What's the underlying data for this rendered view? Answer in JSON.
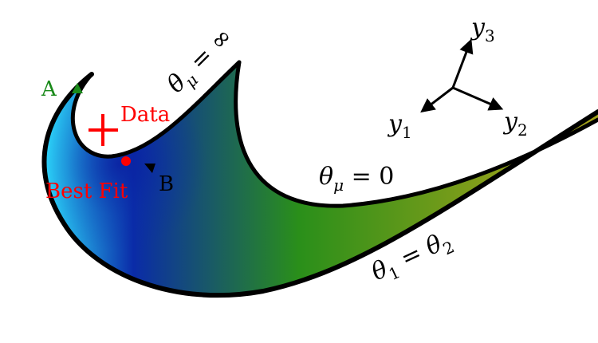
{
  "labels": {
    "point_a": "A",
    "point_b": "B",
    "data": "Data",
    "best_fit": "Best Fit",
    "theta_mu_inf": {
      "theta": "θ",
      "sub": "μ",
      "rel": " = ∞"
    },
    "theta_mu_zero": {
      "theta": "θ",
      "sub": "μ",
      "rel": " = 0"
    },
    "theta_eq": {
      "t1": "θ",
      "s1": "1",
      "rel": " = θ",
      "s2": "2"
    }
  },
  "axes": {
    "y1": {
      "main": "y",
      "sub": "1"
    },
    "y2": {
      "main": "y",
      "sub": "2"
    },
    "y3": {
      "main": "y",
      "sub": "3"
    }
  },
  "colors": {
    "data": "#ff0000",
    "best_fit": "#ff0000",
    "point_a": "#1a8a1a",
    "point_b": "#000000",
    "outline": "#000000",
    "fill_cyan": "#2ee0ff",
    "fill_blue": "#0a2ba8",
    "fill_green": "#2a8f1a",
    "fill_olive": "#a3a31a"
  }
}
